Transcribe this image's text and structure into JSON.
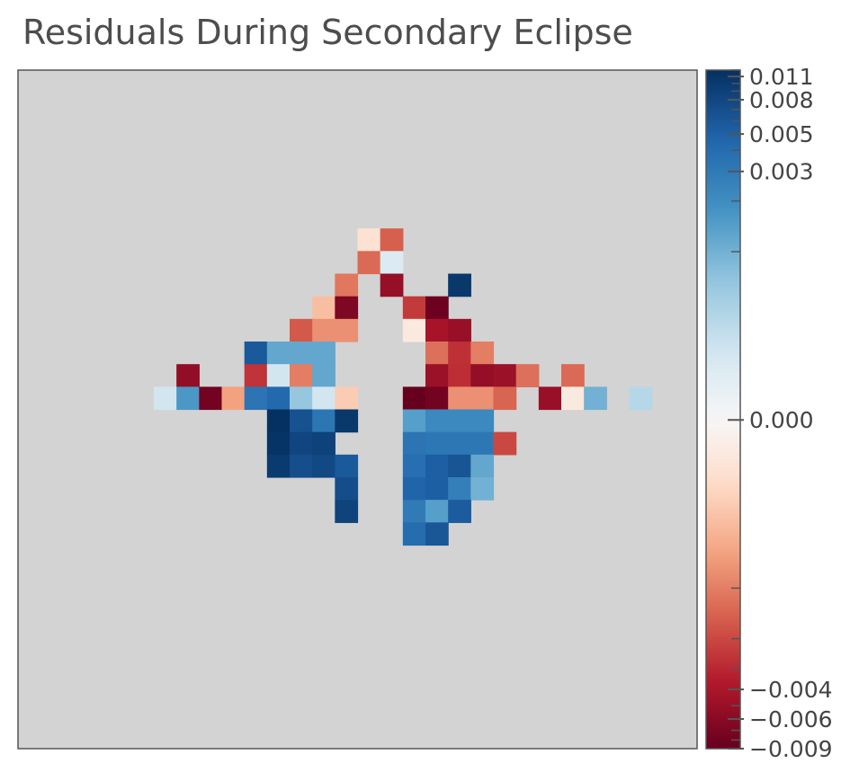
{
  "chart_data": {
    "type": "heatmap",
    "title": "Residuals During Secondary Eclipse",
    "xlabel": "",
    "ylabel": "",
    "grid": false,
    "background_color": "#d3d3d3",
    "colormap": "RdBu",
    "color_scale": "symmetric-log",
    "value_range": [
      -0.009,
      0.012
    ],
    "colorbar": {
      "position": "right",
      "tick_labels": [
        "0.011",
        "0.008",
        "0.005",
        "0.003",
        "0.000",
        "−0.004",
        "−0.006",
        "−0.009"
      ],
      "tick_values": [
        0.011,
        0.008,
        0.005,
        0.003,
        0.0,
        -0.004,
        -0.006,
        -0.009
      ]
    },
    "grid_shape": {
      "rows": 30,
      "cols": 30
    },
    "cells": [
      {
        "row": 7,
        "col": 15,
        "value": -0.0003
      },
      {
        "row": 7,
        "col": 16,
        "value": -0.0015
      },
      {
        "row": 8,
        "col": 15,
        "value": -0.0013
      },
      {
        "row": 8,
        "col": 16,
        "value": 0.0003
      },
      {
        "row": 9,
        "col": 14,
        "value": -0.0011
      },
      {
        "row": 9,
        "col": 16,
        "value": -0.0052
      },
      {
        "row": 9,
        "col": 19,
        "value": 0.0105
      },
      {
        "row": 10,
        "col": 13,
        "value": -0.0006
      },
      {
        "row": 10,
        "col": 14,
        "value": -0.0068
      },
      {
        "row": 10,
        "col": 17,
        "value": -0.0024
      },
      {
        "row": 10,
        "col": 18,
        "value": -0.0085
      },
      {
        "row": 11,
        "col": 12,
        "value": -0.0016
      },
      {
        "row": 11,
        "col": 13,
        "value": -0.0009
      },
      {
        "row": 11,
        "col": 14,
        "value": -0.0009
      },
      {
        "row": 11,
        "col": 17,
        "value": -0.0002
      },
      {
        "row": 11,
        "col": 18,
        "value": -0.0042
      },
      {
        "row": 11,
        "col": 19,
        "value": -0.005
      },
      {
        "row": 12,
        "col": 10,
        "value": 0.0058
      },
      {
        "row": 12,
        "col": 11,
        "value": 0.0012
      },
      {
        "row": 12,
        "col": 12,
        "value": 0.0012
      },
      {
        "row": 12,
        "col": 13,
        "value": 0.0012
      },
      {
        "row": 12,
        "col": 18,
        "value": -0.0012
      },
      {
        "row": 12,
        "col": 19,
        "value": -0.0027
      },
      {
        "row": 12,
        "col": 20,
        "value": -0.001
      },
      {
        "row": 13,
        "col": 7,
        "value": -0.0054
      },
      {
        "row": 13,
        "col": 10,
        "value": -0.0026
      },
      {
        "row": 13,
        "col": 11,
        "value": 0.0004
      },
      {
        "row": 13,
        "col": 12,
        "value": -0.001
      },
      {
        "row": 13,
        "col": 13,
        "value": 0.0012
      },
      {
        "row": 13,
        "col": 18,
        "value": -0.0048
      },
      {
        "row": 13,
        "col": 19,
        "value": -0.0028
      },
      {
        "row": 13,
        "col": 20,
        "value": -0.0053
      },
      {
        "row": 13,
        "col": 21,
        "value": -0.0048
      },
      {
        "row": 13,
        "col": 22,
        "value": -0.0012
      },
      {
        "row": 13,
        "col": 24,
        "value": -0.0013
      },
      {
        "row": 14,
        "col": 6,
        "value": 0.0004
      },
      {
        "row": 14,
        "col": 7,
        "value": 0.0016
      },
      {
        "row": 14,
        "col": 8,
        "value": -0.0079
      },
      {
        "row": 14,
        "col": 9,
        "value": -0.0008
      },
      {
        "row": 14,
        "col": 10,
        "value": 0.0034
      },
      {
        "row": 14,
        "col": 11,
        "value": 0.0043
      },
      {
        "row": 14,
        "col": 12,
        "value": 0.0008
      },
      {
        "row": 14,
        "col": 13,
        "value": 0.0004
      },
      {
        "row": 14,
        "col": 14,
        "value": -0.0005
      },
      {
        "row": 14,
        "col": 17,
        "value": -0.009
      },
      {
        "row": 14,
        "col": 18,
        "value": -0.0078
      },
      {
        "row": 14,
        "col": 19,
        "value": -0.0009
      },
      {
        "row": 14,
        "col": 20,
        "value": -0.0009
      },
      {
        "row": 14,
        "col": 21,
        "value": -0.0014
      },
      {
        "row": 14,
        "col": 23,
        "value": -0.005
      },
      {
        "row": 14,
        "col": 24,
        "value": -0.0002
      },
      {
        "row": 14,
        "col": 25,
        "value": 0.001
      },
      {
        "row": 14,
        "col": 27,
        "value": 0.0006
      },
      {
        "row": 15,
        "col": 11,
        "value": 0.0118
      },
      {
        "row": 15,
        "col": 12,
        "value": 0.0066
      },
      {
        "row": 15,
        "col": 13,
        "value": 0.0033
      },
      {
        "row": 15,
        "col": 14,
        "value": 0.0105
      },
      {
        "row": 15,
        "col": 17,
        "value": 0.0014
      },
      {
        "row": 15,
        "col": 18,
        "value": 0.0022
      },
      {
        "row": 15,
        "col": 19,
        "value": 0.0022
      },
      {
        "row": 15,
        "col": 20,
        "value": 0.0022
      },
      {
        "row": 16,
        "col": 11,
        "value": 0.0112
      },
      {
        "row": 16,
        "col": 12,
        "value": 0.0082
      },
      {
        "row": 16,
        "col": 13,
        "value": 0.0087
      },
      {
        "row": 16,
        "col": 17,
        "value": 0.0034
      },
      {
        "row": 16,
        "col": 18,
        "value": 0.0032
      },
      {
        "row": 16,
        "col": 19,
        "value": 0.0032
      },
      {
        "row": 16,
        "col": 20,
        "value": 0.0032
      },
      {
        "row": 16,
        "col": 21,
        "value": -0.002
      },
      {
        "row": 17,
        "col": 11,
        "value": 0.01
      },
      {
        "row": 17,
        "col": 12,
        "value": 0.007
      },
      {
        "row": 17,
        "col": 13,
        "value": 0.0078
      },
      {
        "row": 17,
        "col": 14,
        "value": 0.0058
      },
      {
        "row": 17,
        "col": 17,
        "value": 0.0038
      },
      {
        "row": 17,
        "col": 18,
        "value": 0.0052
      },
      {
        "row": 17,
        "col": 19,
        "value": 0.0062
      },
      {
        "row": 17,
        "col": 20,
        "value": 0.0012
      },
      {
        "row": 18,
        "col": 14,
        "value": 0.0072
      },
      {
        "row": 18,
        "col": 17,
        "value": 0.0048
      },
      {
        "row": 18,
        "col": 18,
        "value": 0.0052
      },
      {
        "row": 18,
        "col": 19,
        "value": 0.0027
      },
      {
        "row": 18,
        "col": 20,
        "value": 0.001
      },
      {
        "row": 19,
        "col": 14,
        "value": 0.0085
      },
      {
        "row": 19,
        "col": 17,
        "value": 0.003
      },
      {
        "row": 19,
        "col": 18,
        "value": 0.0014
      },
      {
        "row": 19,
        "col": 19,
        "value": 0.0055
      },
      {
        "row": 20,
        "col": 17,
        "value": 0.004
      },
      {
        "row": 20,
        "col": 18,
        "value": 0.006
      }
    ]
  }
}
